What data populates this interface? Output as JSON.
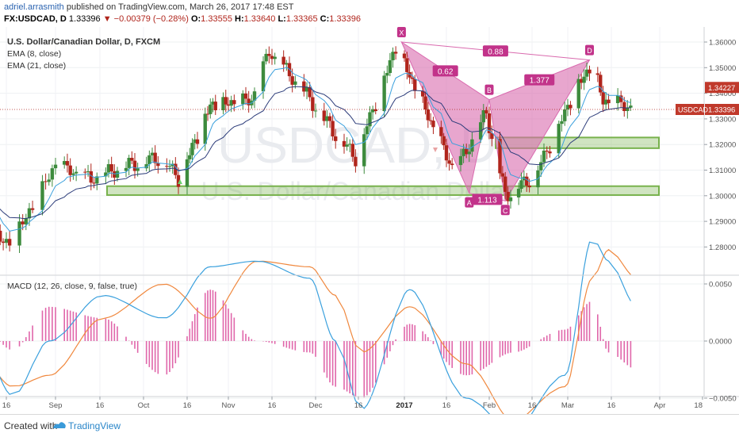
{
  "header": {
    "username": "adriel.arrasmith",
    "published_text": "published on TradingView.com, March 26, 2017 17:48 EST",
    "symbol": "FX:USDCAD, D",
    "last": "1.33396",
    "change": "▼ −0.00379 (−0.28%)",
    "o_label": "O:",
    "o": "1.33555",
    "h_label": "H:",
    "h": "1.33640",
    "l_label": "L:",
    "l": "1.33365",
    "c_label": "C:",
    "c": "1.33396"
  },
  "legend": {
    "title": "U.S. Dollar/Canadian Dollar, D, FXCM",
    "ema8": "EMA (8, close)",
    "ema21": "EMA (21, close)",
    "macd": "MACD (12, 26, close, 9, false, true)"
  },
  "watermark": {
    "big": "USDCAD, D",
    "small": "U.S. Dollar/Canadian Dollar"
  },
  "price_axis": {
    "ticks": [
      "1.36000",
      "1.35000",
      "1.34000",
      "1.33000",
      "1.32000",
      "1.31000",
      "1.30000",
      "1.29000",
      "1.28000"
    ],
    "tag_high": "1.34227",
    "tag_last": "1.33396",
    "symbol_tag": "USDCAD"
  },
  "macd_axis": {
    "ticks": [
      "0.0050",
      "0.0000",
      "−0.0050"
    ]
  },
  "time_axis": {
    "labels": [
      "16",
      "Sep",
      "16",
      "Oct",
      "16",
      "Nov",
      "16",
      "Dec",
      "16",
      "2017",
      "16",
      "Feb",
      "16",
      "Mar",
      "16",
      "Apr",
      "18"
    ]
  },
  "pattern": {
    "points": [
      {
        "label": "X",
        "price": 1.36
      },
      {
        "label": "A",
        "price": 1.301
      },
      {
        "label": "B",
        "price": 1.3375
      },
      {
        "label": "C",
        "price": 1.298
      },
      {
        "label": "D",
        "price": 1.353
      }
    ],
    "ratios": [
      "0.62",
      "1.377",
      "0.88",
      "1.113"
    ]
  },
  "zones": [
    {
      "name": "support",
      "from": 1.3015,
      "to": 1.3025
    },
    {
      "name": "resistance",
      "from": 1.3198,
      "to": 1.3215
    }
  ],
  "colors": {
    "up": "#3d8b3d",
    "down": "#b0251c",
    "pattern": "#d96aae",
    "pattern_text": "#c2338a",
    "zone": "#78b24d",
    "ema8": "#3aa0dd",
    "ema21": "#2c3c7a",
    "macd_line": "#3aa0dd",
    "signal_line": "#f0883e",
    "hist": "#e066aa"
  },
  "chart_data": {
    "type": "candlestick",
    "title": "U.S. Dollar/Canadian Dollar, D, FXCM",
    "price_ylim": [
      1.2735,
      1.3655
    ],
    "macd_ylim": [
      -0.0075,
      0.0095
    ],
    "key_closes": [
      {
        "x": "Aug 9",
        "y": 1.297
      },
      {
        "x": "Aug 15",
        "y": 1.28
      },
      {
        "x": "Aug 22",
        "y": 1.291
      },
      {
        "x": "Aug 31",
        "y": 1.312
      },
      {
        "x": "Sep 12",
        "y": 1.306
      },
      {
        "x": "Sep 23",
        "y": 1.311
      },
      {
        "x": "Oct 6",
        "y": 1.315
      },
      {
        "x": "Oct 12",
        "y": 1.307
      },
      {
        "x": "Oct 24",
        "y": 1.335
      },
      {
        "x": "Nov 8",
        "y": 1.337
      },
      {
        "x": "Nov 14",
        "y": 1.356
      },
      {
        "x": "Nov 25",
        "y": 1.342
      },
      {
        "x": "Dec 7",
        "y": 1.324
      },
      {
        "x": "Dec 14",
        "y": 1.315
      },
      {
        "x": "Dec 28",
        "y": 1.358
      },
      {
        "x": "Jan 4",
        "y": 1.342
      },
      {
        "x": "Jan 19",
        "y": 1.309
      },
      {
        "x": "Jan 30",
        "y": 1.332
      },
      {
        "x": "Feb 6",
        "y": 1.3
      },
      {
        "x": "Feb 17",
        "y": 1.308
      },
      {
        "x": "Mar 3",
        "y": 1.342
      },
      {
        "x": "Mar 9",
        "y": 1.351
      },
      {
        "x": "Mar 13",
        "y": 1.337
      },
      {
        "x": "Mar 24",
        "y": 1.334
      }
    ],
    "macd_points": [
      {
        "x": "Aug 9",
        "macd": -0.001,
        "signal": -0.002
      },
      {
        "x": "Aug 18",
        "macd": -0.0048,
        "signal": -0.004
      },
      {
        "x": "Aug 29",
        "macd": 0.0,
        "signal": -0.003
      },
      {
        "x": "Sep 16",
        "macd": 0.004,
        "signal": 0.002
      },
      {
        "x": "Oct 7",
        "macd": 0.002,
        "signal": 0.005
      },
      {
        "x": "Oct 24",
        "macd": 0.0065,
        "signal": 0.002
      },
      {
        "x": "Nov 10",
        "macd": 0.007,
        "signal": 0.007
      },
      {
        "x": "Nov 28",
        "macd": 0.0055,
        "signal": 0.0065
      },
      {
        "x": "Dec 7",
        "macd": 0.0,
        "signal": 0.004
      },
      {
        "x": "Dec 16",
        "macd": -0.006,
        "signal": -0.001
      },
      {
        "x": "Jan 2",
        "macd": 0.0045,
        "signal": 0.003
      },
      {
        "x": "Jan 23",
        "macd": -0.005,
        "signal": -0.002
      },
      {
        "x": "Feb 9",
        "macd": -0.008,
        "signal": -0.007
      },
      {
        "x": "Feb 27",
        "macd": -0.003,
        "signal": -0.004
      },
      {
        "x": "Mar 9",
        "macd": 0.009,
        "signal": 0.0055
      },
      {
        "x": "Mar 15",
        "macd": 0.007,
        "signal": 0.008
      },
      {
        "x": "Mar 24",
        "macd": 0.003,
        "signal": 0.0055
      }
    ]
  }
}
